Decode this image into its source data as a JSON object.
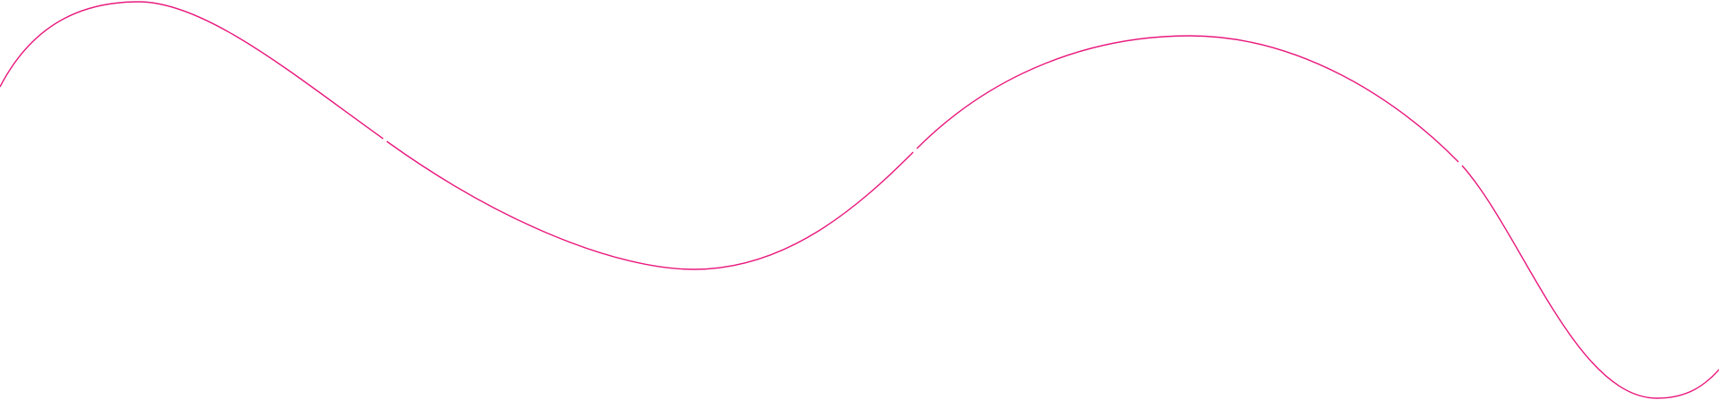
{
  "decoration": {
    "type": "wavy-line",
    "stroke_color": "#e8197d",
    "background_color": "#ffffff",
    "segments": 4
  }
}
